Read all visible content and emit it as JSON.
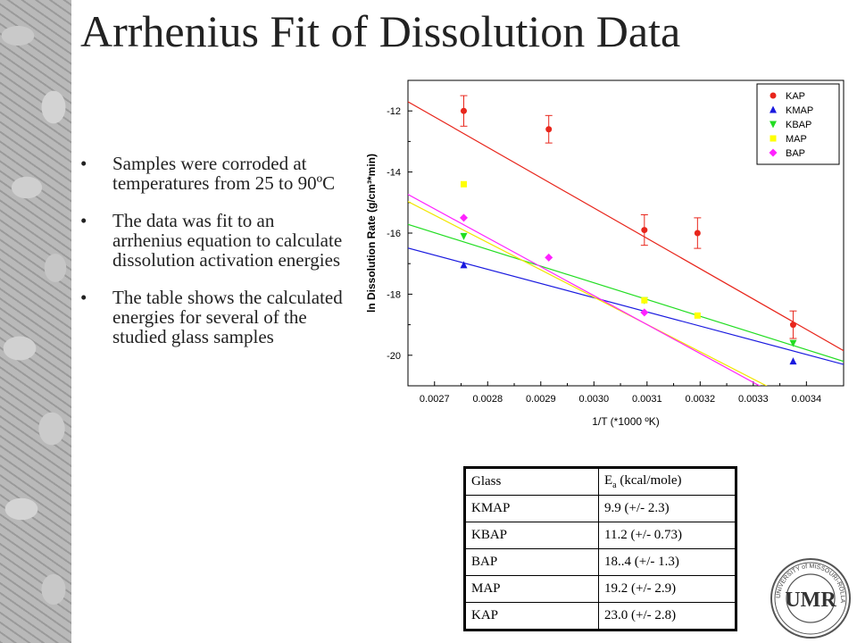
{
  "slide": {
    "title": "Arrhenius Fit of Dissolution Data",
    "bullets": [
      "Samples were corroded at temperatures from 25 to 90ºC",
      "The data was fit to an arrhenius equation to calculate dissolution activation energies",
      "The table shows the calculated energies for several of the studied glass samples"
    ],
    "bullet_glyph": "•"
  },
  "chart_data": {
    "type": "scatter",
    "xlabel": "1/T (*1000 ºK)",
    "ylabel": "ln Dissolution Rate (g/cm³*min)",
    "xlim": [
      0.00265,
      0.00347
    ],
    "ylim": [
      -21.0,
      -11.0
    ],
    "xticks": [
      0.0027,
      0.0028,
      0.0029,
      0.003,
      0.0031,
      0.0032,
      0.0033,
      0.0034
    ],
    "yticks": [
      -12,
      -14,
      -16,
      -18,
      -20
    ],
    "legend_position": "top-right",
    "grid": false,
    "series": [
      {
        "name": "KAP",
        "color": "#e8261c",
        "marker": "circle",
        "x": [
          0.002755,
          0.002915,
          0.003095,
          0.003195,
          0.003375
        ],
        "y": [
          -12.0,
          -12.6,
          -15.9,
          -16.0,
          -19.0
        ],
        "err": [
          0.5,
          0.45,
          0.5,
          0.5,
          0.45
        ],
        "fit": [
          [
            0.00262,
            -11.4
          ],
          [
            0.00347,
            -19.85
          ]
        ]
      },
      {
        "name": "KMAP",
        "color": "#1a1adf",
        "marker": "triangle-up",
        "x": [
          0.002755,
          0.003375
        ],
        "y": [
          -17.05,
          -20.2
        ],
        "fit": [
          [
            0.00262,
            -16.35
          ],
          [
            0.00347,
            -20.3
          ]
        ]
      },
      {
        "name": "KBAP",
        "color": "#22dd22",
        "marker": "triangle-down",
        "x": [
          0.002755,
          0.003095,
          0.003375
        ],
        "y": [
          -16.1,
          -18.2,
          -19.6
        ],
        "fit": [
          [
            0.00262,
            -15.55
          ],
          [
            0.00347,
            -20.2
          ]
        ]
      },
      {
        "name": "MAP",
        "color": "#ffff00",
        "marker": "square",
        "x": [
          0.002755,
          0.003095,
          0.003195
        ],
        "y": [
          -14.4,
          -18.2,
          -18.7
        ],
        "fit": [
          [
            0.00262,
            -14.7
          ],
          [
            0.00347,
            -22.3
          ]
        ]
      },
      {
        "name": "BAP",
        "color": "#ff22ff",
        "marker": "diamond",
        "x": [
          0.002755,
          0.002915,
          0.003095
        ],
        "y": [
          -15.5,
          -16.8,
          -18.6
        ],
        "fit": [
          [
            0.00262,
            -14.45
          ],
          [
            0.00347,
            -22.5
          ]
        ]
      }
    ]
  },
  "table": {
    "header": {
      "glass": "Glass",
      "energy_main": "E",
      "energy_sub": "a",
      "energy_rest": " (kcal/mole)"
    },
    "rows": [
      {
        "glass": "KMAP",
        "energy": "9.9 (+/- 2.3)"
      },
      {
        "glass": "KBAP",
        "energy": "11.2 (+/- 0.73)"
      },
      {
        "glass": "BAP",
        "energy": "18..4 (+/- 1.3)"
      },
      {
        "glass": "MAP",
        "energy": "19.2 (+/- 2.9)"
      },
      {
        "glass": "KAP",
        "energy": "23.0 (+/- 2.8)"
      }
    ]
  },
  "logo": {
    "ring_text": "UNIVERSITY of MISSOURI-ROLLA",
    "letters": "UMR",
    "icon": "university-seal-icon"
  }
}
